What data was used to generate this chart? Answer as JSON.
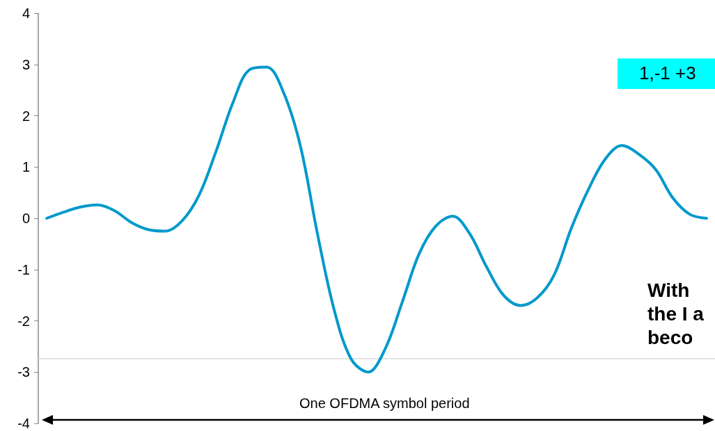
{
  "chart_data": {
    "type": "line",
    "categories": [
      null,
      null,
      null,
      null,
      null,
      null,
      null,
      null,
      null,
      null,
      null,
      null,
      null,
      null,
      null,
      null,
      null,
      null,
      null,
      null,
      null,
      null,
      null,
      null,
      null,
      null,
      null,
      null,
      null,
      null,
      null,
      null,
      null,
      null,
      null,
      null,
      null,
      null,
      null,
      null
    ],
    "series": [
      {
        "color": "#0099cc",
        "values": [
          0,
          0.12,
          0.22,
          0.26,
          0.15,
          -0.08,
          -0.22,
          -0.25,
          -0.05,
          0.45,
          1.3,
          2.25,
          2.9,
          2.95,
          2.45,
          1.4,
          -0.3,
          -1.8,
          -2.75,
          -3.0,
          -2.55,
          -1.65,
          -0.7,
          -0.15,
          0.04,
          -0.3,
          -0.95,
          -1.5,
          -1.7,
          -1.55,
          -1.1,
          -0.2,
          0.55,
          1.15,
          1.42,
          1.25,
          0.95,
          0.4,
          0.08,
          0
        ]
      }
    ],
    "ylim": [
      -4,
      4
    ],
    "yticks": [
      -4,
      -3,
      -2,
      -1,
      0,
      1,
      2,
      3,
      4
    ],
    "tick_labels": "y",
    "grid": false,
    "marker": "none",
    "line_style": "solid",
    "ref_lines": [
      {
        "axis": "y",
        "value": -2.74,
        "color": "#d9d9d9"
      }
    ],
    "annotations": [
      "One OFDMA symbol period",
      "1,-1 +3",
      "With\nthe I a\nbeco"
    ]
  }
}
